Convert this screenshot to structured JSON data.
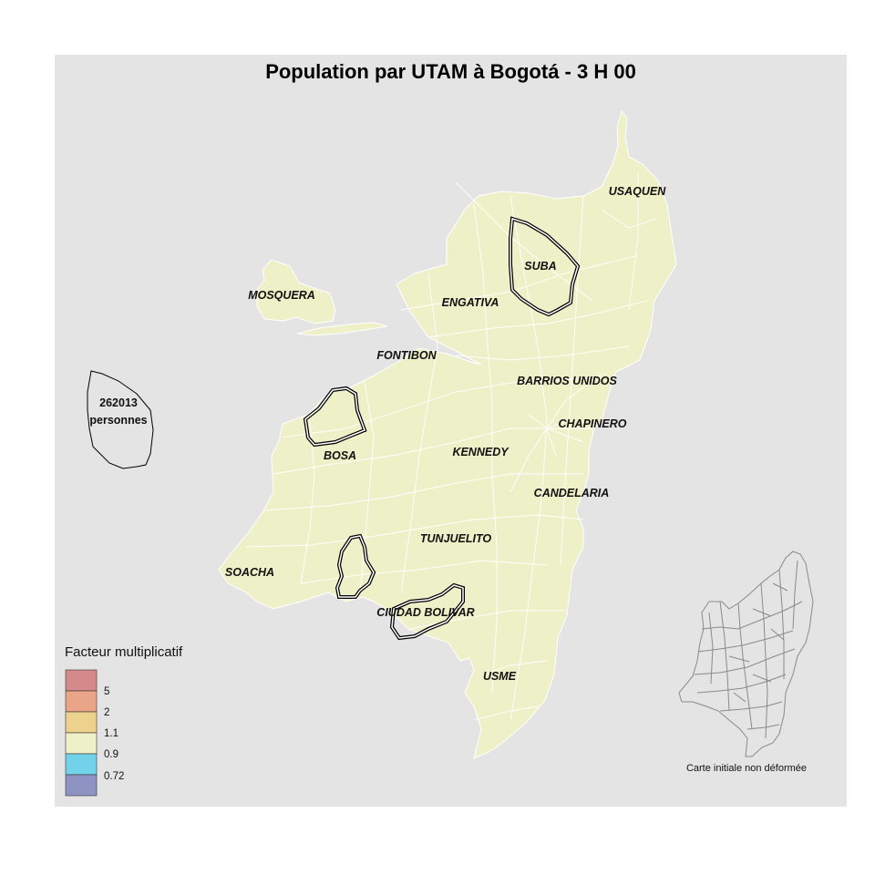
{
  "title": "Population par UTAM à Bogotá - 3 H 00",
  "labels": {
    "usaquen": "USAQUEN",
    "suba": "SUBA",
    "mosquera": "MOSQUERA",
    "engativa": "ENGATIVA",
    "fontibon": "FONTIBON",
    "barrios_unidos": "BARRIOS UNIDOS",
    "chapinero": "CHAPINERO",
    "kennedy": "KENNEDY",
    "bosa": "BOSA",
    "candelaria": "CANDELARIA",
    "tunjuelito": "TUNJUELITO",
    "soacha": "SOACHA",
    "ciudad_bolivar": "CIUDAD BOLIVAR",
    "usme": "USME"
  },
  "reference": {
    "value": "262013",
    "unit": "personnes"
  },
  "legend": {
    "title": "Facteur multiplicatif",
    "breaks": [
      "5",
      "2",
      "1.1",
      "0.9",
      "0.72"
    ],
    "colors": [
      "#d5898b",
      "#eaa588",
      "#ecd28c",
      "#eef0c8",
      "#72d2ea",
      "#8e93c3"
    ]
  },
  "inset": {
    "caption": "Carte initiale non déformée"
  },
  "colors": {
    "background": "#e4e4e4",
    "land": "#eef0c8",
    "internal_lines": "#ffffff"
  }
}
